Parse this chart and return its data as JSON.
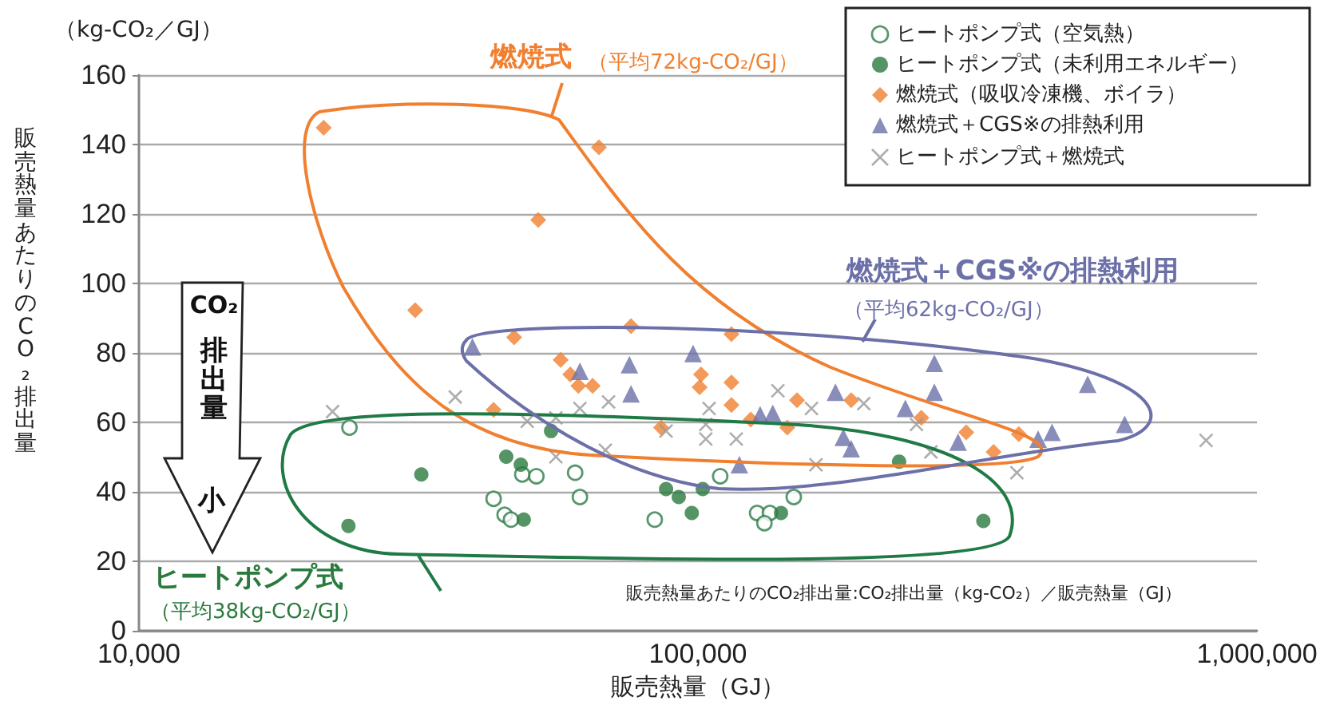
{
  "chart_data": {
    "type": "scatter",
    "xlabel": "販売熱量（GJ）",
    "ylabel": "販売熱量あたりのCO₂排出量",
    "annotations": [
      "燃焼式",
      "（平均72kg-CO₂/GJ）",
      "燃焼式＋CGS※の排熱利用",
      "（平均62kg-CO₂/GJ）",
      "ヒートポンプ式",
      "（平均38kg-CO₂/GJ）",
      "販売熱量あたりのCO₂排出量:CO₂排出量（kg-CO₂）／販売熱量（GJ）",
      "CO₂",
      "排出量",
      "小",
      "（kg-CO₂／GJ）"
    ],
    "log": "x",
    "xlim": [
      10000,
      1000000
    ],
    "xticks": [
      {
        "value": 10000,
        "label": "10,000"
      },
      {
        "value": 100000,
        "label": "100,000"
      },
      {
        "value": 1000000,
        "label": "1,000,000"
      }
    ],
    "ylim": [
      0,
      160
    ],
    "yticks": [
      0,
      20,
      40,
      60,
      80,
      100,
      120,
      140,
      160
    ],
    "grid": "y",
    "legend": "top right",
    "series": [
      {
        "name": "ヒートポンプ式（空気熱）",
        "color": "#2e7d4a",
        "marker": "circle",
        "x": [
          23800,
          43100,
          45100,
          46300,
          48500,
          51400,
          60300,
          61500,
          83700,
          109600,
          127600,
          134500,
          131500,
          148400
        ],
        "values": [
          58.5,
          38,
          33.4,
          32,
          45,
          44.5,
          45.5,
          38.5,
          32,
          44.5,
          33.9,
          33.9,
          31,
          38.5
        ]
      },
      {
        "name": "ヒートポンプ式（未利用エネルギー）",
        "color": "#2a7a3e",
        "marker": "circle",
        "x": [
          23700,
          32000,
          45400,
          48200,
          48800,
          54600,
          87700,
          92400,
          102000,
          97500,
          140800,
          229000,
          324000
        ],
        "values": [
          30.2,
          45,
          50.1,
          47.8,
          32,
          57.5,
          40.8,
          38.5,
          40.8,
          33.9,
          33.9,
          48.7,
          31.6
        ]
      },
      {
        "name": "燃焼式（吸収冷凍機、ボイラ）",
        "color": "#f08030",
        "marker": "diamond",
        "x": [
          21400,
          51800,
          31200,
          46900,
          43100,
          66500,
          75900,
          114800,
          56800,
          59100,
          61100,
          64800,
          101300,
          100700,
          114800,
          114800,
          85900,
          124300,
          150400,
          188000,
          144500,
          251000,
          302000,
          338000,
          375000
        ],
        "values": [
          144.8,
          118.3,
          92.3,
          84.5,
          63.6,
          139.2,
          87.7,
          85.4,
          78,
          73.8,
          70.5,
          70.5,
          73.8,
          70.1,
          71.5,
          65,
          58.5,
          60.8,
          66.4,
          66.4,
          58.5,
          61.3,
          57.1,
          51.5,
          56.6
        ]
      },
      {
        "name": "燃焼式＋CGS※の排熱利用",
        "color": "#6c70a8",
        "marker": "triangle",
        "x": [
          39500,
          61500,
          75400,
          75900,
          98000,
          118600,
          129200,
          136100,
          176200,
          182000,
          188000,
          235000,
          264800,
          264800,
          292000,
          406000,
          430000,
          498000,
          580000
        ],
        "values": [
          81.7,
          74.7,
          76.6,
          68.2,
          79.8,
          47.8,
          62.2,
          62.6,
          68.7,
          55.7,
          52.4,
          64,
          77,
          68.7,
          54.3,
          55.2,
          57.1,
          71,
          59.4
        ]
      },
      {
        "name": "ヒートポンプ式＋燃焼式",
        "color": "#999999",
        "marker": "cross",
        "x": [
          22200,
          36800,
          49500,
          55700,
          61500,
          69200,
          55700,
          68300,
          87700,
          104700,
          103300,
          103300,
          117100,
          139000,
          159600,
          198000,
          162600,
          246000,
          261000,
          372000,
          811000
        ],
        "values": [
          63.1,
          67.3,
          60.3,
          61.3,
          64,
          65.9,
          50.1,
          52,
          57.5,
          64,
          59.4,
          55.2,
          55.2,
          69.1,
          64,
          65.4,
          47.8,
          59.4,
          51.5,
          45.5,
          54.8
        ]
      }
    ]
  }
}
